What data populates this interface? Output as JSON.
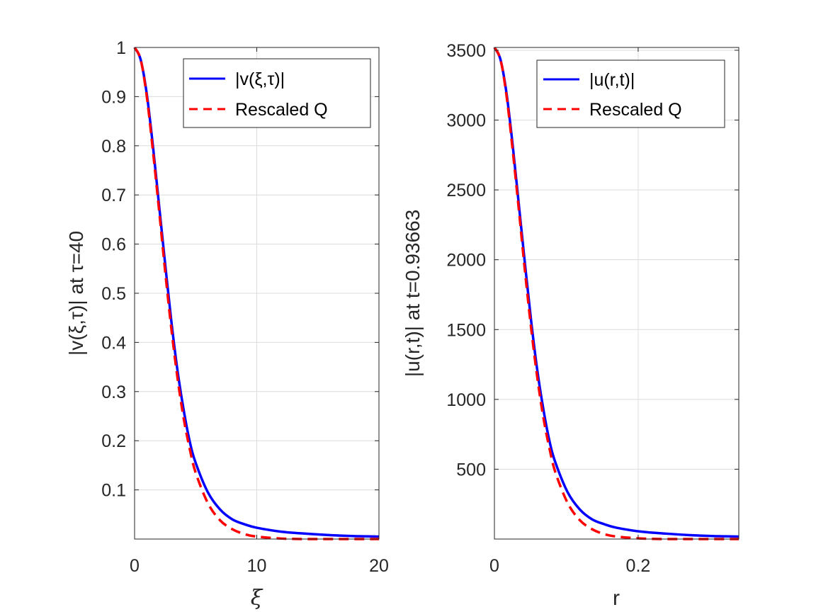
{
  "colors": {
    "series_blue": "#0000ff",
    "series_red": "#ff0000",
    "axis": "#262626",
    "grid": "#dcdcdc"
  },
  "chart_data": [
    {
      "type": "line",
      "xlabel": "ξ",
      "ylabel": "|v(ξ,τ)| at τ=40",
      "xlim": [
        0,
        20
      ],
      "ylim": [
        0,
        1
      ],
      "xticks": [
        0,
        10,
        20
      ],
      "xtick_labels": [
        "0",
        "10",
        "20"
      ],
      "yticks": [
        0.1,
        0.2,
        0.3,
        0.4,
        0.5,
        0.6,
        0.7,
        0.8,
        0.9,
        1
      ],
      "ytick_labels": [
        "0.1",
        "0.2",
        "0.3",
        "0.4",
        "0.5",
        "0.6",
        "0.7",
        "0.8",
        "0.9",
        "1"
      ],
      "grid": true,
      "legend_position": "top-right",
      "series": [
        {
          "name": "|v(ξ,τ)|",
          "style": "solid",
          "color": "#0000ff",
          "x": [
            0,
            0.5,
            1,
            1.5,
            2,
            2.5,
            3,
            3.5,
            4,
            4.5,
            5,
            6,
            7,
            8,
            9,
            10,
            12,
            14,
            16,
            18,
            20
          ],
          "y": [
            1,
            0.975,
            0.905,
            0.8,
            0.68,
            0.56,
            0.445,
            0.345,
            0.265,
            0.2,
            0.155,
            0.095,
            0.06,
            0.04,
            0.03,
            0.023,
            0.015,
            0.011,
            0.008,
            0.006,
            0.005
          ]
        },
        {
          "name": "Rescaled Q",
          "style": "dashed",
          "color": "#ff0000",
          "x": [
            0,
            0.5,
            1,
            1.5,
            2,
            2.5,
            3,
            3.5,
            4,
            4.5,
            5,
            6,
            7,
            8,
            9,
            10,
            12,
            14,
            16,
            18,
            20
          ],
          "y": [
            1,
            0.975,
            0.9,
            0.79,
            0.67,
            0.545,
            0.43,
            0.33,
            0.248,
            0.185,
            0.135,
            0.073,
            0.038,
            0.02,
            0.01,
            0.005,
            0.001,
            0,
            0,
            0,
            0
          ]
        }
      ]
    },
    {
      "type": "line",
      "xlabel": "r",
      "ylabel": "|u(r,t)| at t=0.93663",
      "xlim": [
        0,
        0.34
      ],
      "ylim": [
        0,
        3520
      ],
      "xticks": [
        0,
        0.2
      ],
      "xtick_labels": [
        "0",
        "0.2"
      ],
      "yticks": [
        500,
        1000,
        1500,
        2000,
        2500,
        3000,
        3500
      ],
      "ytick_labels": [
        "500",
        "1000",
        "1500",
        "2000",
        "2500",
        "3000",
        "3500"
      ],
      "grid": true,
      "legend_position": "top-right",
      "series": [
        {
          "name": "|u(r,t)|",
          "style": "solid",
          "color": "#0000ff",
          "x": [
            0,
            0.0085,
            0.017,
            0.0255,
            0.034,
            0.0425,
            0.051,
            0.0595,
            0.068,
            0.0765,
            0.085,
            0.102,
            0.119,
            0.136,
            0.153,
            0.17,
            0.204,
            0.238,
            0.272,
            0.306,
            0.34
          ],
          "y": [
            3520,
            3432,
            3186,
            2816,
            2394,
            1971,
            1566,
            1214,
            933,
            704,
            546,
            334,
            211,
            141,
            106,
            81,
            53,
            39,
            28,
            21,
            18
          ]
        },
        {
          "name": "Rescaled Q",
          "style": "dashed",
          "color": "#ff0000",
          "x": [
            0,
            0.0085,
            0.017,
            0.0255,
            0.034,
            0.0425,
            0.051,
            0.0595,
            0.068,
            0.0765,
            0.085,
            0.102,
            0.119,
            0.136,
            0.153,
            0.17,
            0.204,
            0.238,
            0.272,
            0.306,
            0.34
          ],
          "y": [
            3520,
            3432,
            3168,
            2781,
            2358,
            1918,
            1514,
            1162,
            873,
            651,
            475,
            257,
            134,
            70,
            35,
            18,
            4,
            0,
            0,
            0,
            0
          ]
        }
      ]
    }
  ]
}
